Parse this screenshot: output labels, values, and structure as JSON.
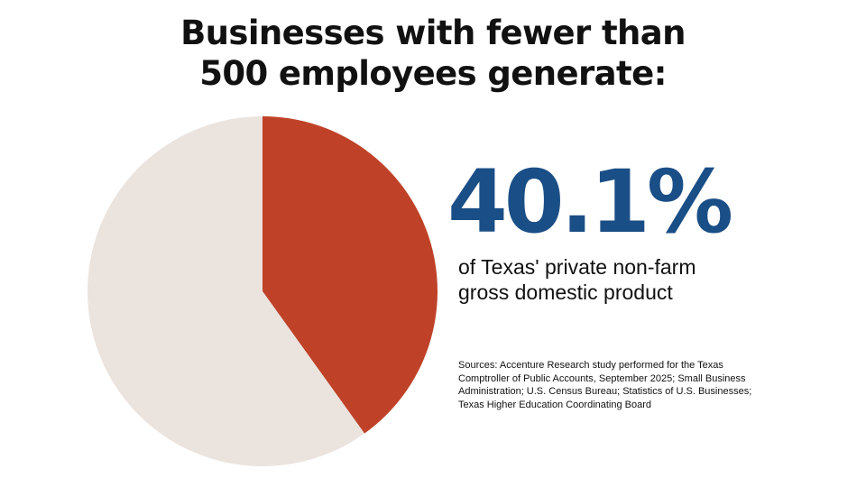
{
  "title_lines": [
    "Businesses with fewer than",
    "500 employees generate:"
  ],
  "highlight": {
    "value": "40.1%",
    "description_lines": [
      "of Texas' private non-farm",
      "gross domestic product"
    ]
  },
  "sources_lines": [
    "Sources: Accenture Research study performed for the Texas",
    "Comptroller of Public Accounts, September 2025; Small Business",
    "Administration; U.S. Census Bureau; Statistics of U.S. Businesses;",
    "Texas Higher Education Coordinating Board"
  ],
  "colors": {
    "highlight_slice": "#bf4228",
    "remainder_slice": "#ebe3de",
    "value_text": "#1a4e86"
  },
  "chart_data": {
    "type": "pie",
    "slices": [
      {
        "label": "",
        "value": 40.1
      },
      {
        "label": "",
        "value": 59.9
      }
    ],
    "start": "12 o'clock",
    "direction": "clockwise",
    "legend": "none"
  }
}
